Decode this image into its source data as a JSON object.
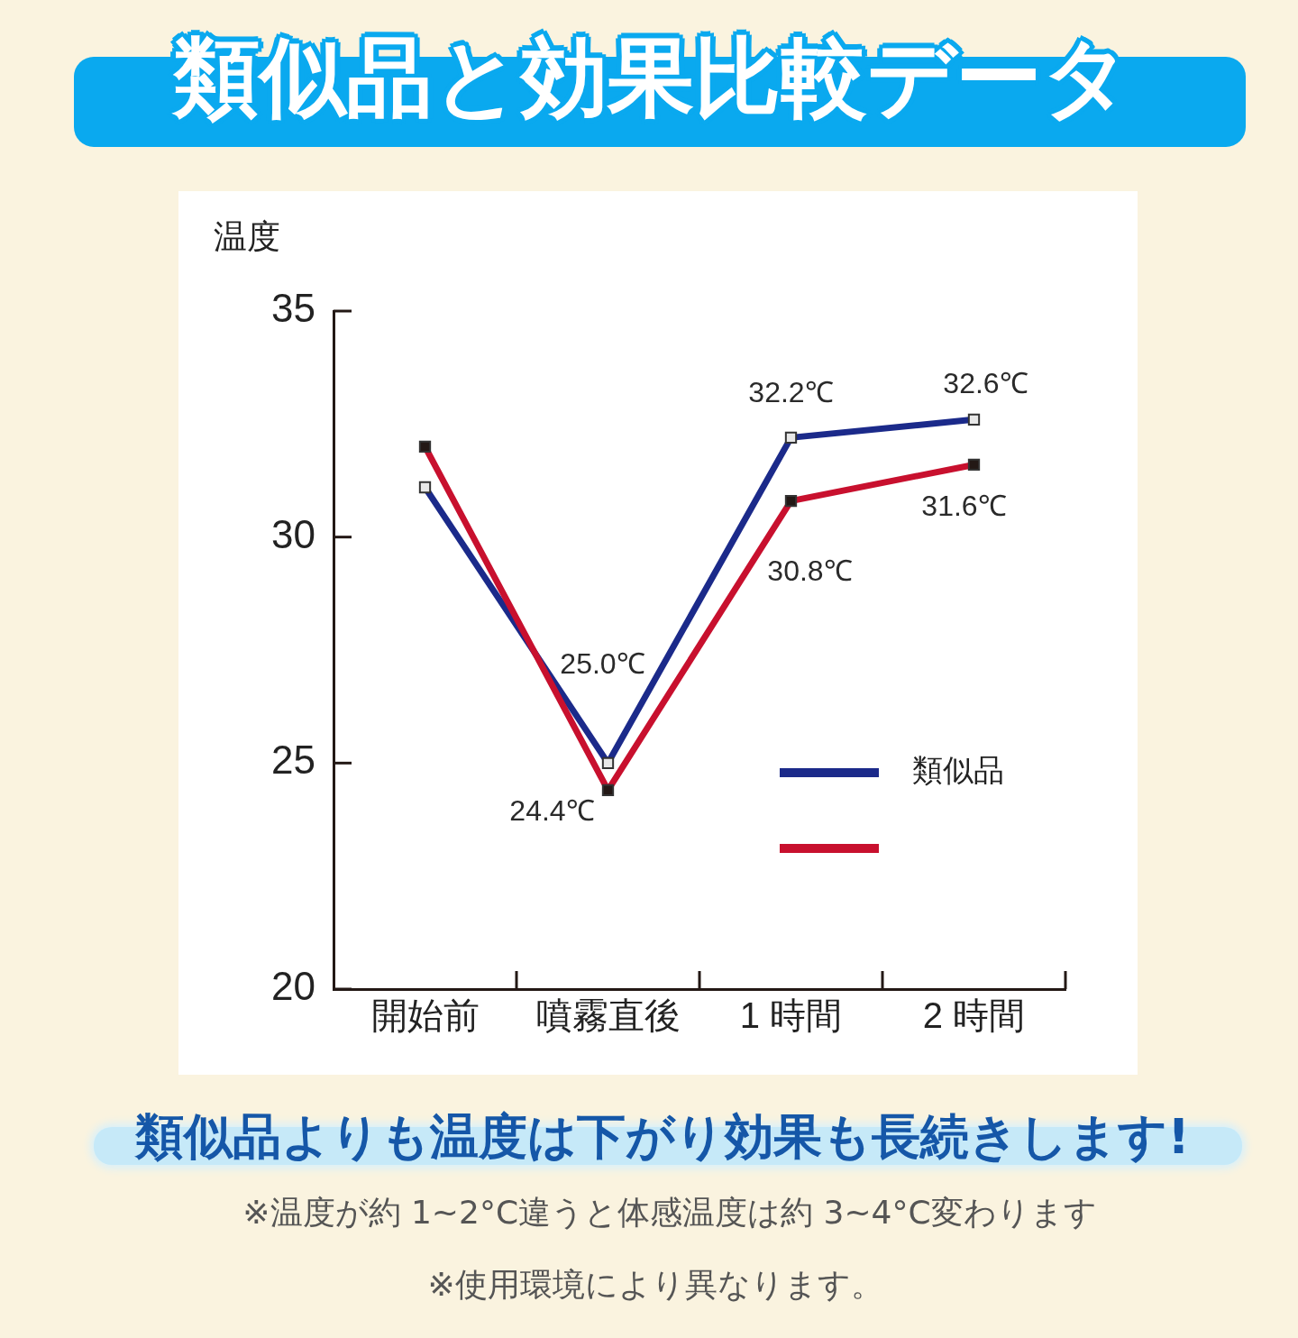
{
  "chart_data": {
    "type": "line",
    "title": "類似品と効果比較データ",
    "subtitle": "類似品よりも温度は下がり効果も長続きします!",
    "ylabel": "温度",
    "categories": [
      "開始前",
      "噴霧直後",
      "1 時間",
      "2 時間"
    ],
    "series": [
      {
        "name": "類似品",
        "color": "#1b2a8a",
        "values": [
          31.1,
          25.0,
          32.2,
          32.6
        ],
        "value_labels": [
          null,
          "25.0℃",
          "32.2℃",
          "32.6℃"
        ]
      },
      {
        "color": "#c8102e",
        "values": [
          32.0,
          24.4,
          30.8,
          31.6
        ],
        "value_labels": [
          null,
          "24.4℃",
          "30.8℃",
          "31.6℃"
        ]
      }
    ],
    "ylim": [
      20,
      35
    ],
    "yticks": [
      20,
      25,
      30,
      35
    ],
    "grid": false,
    "legend": "right",
    "marker": "square",
    "line_style": "solid",
    "annotations": [
      "※温度が約 1~2°C違うと体感温度は約 3~4°C変わります",
      "※使用環境により異なります。"
    ]
  }
}
